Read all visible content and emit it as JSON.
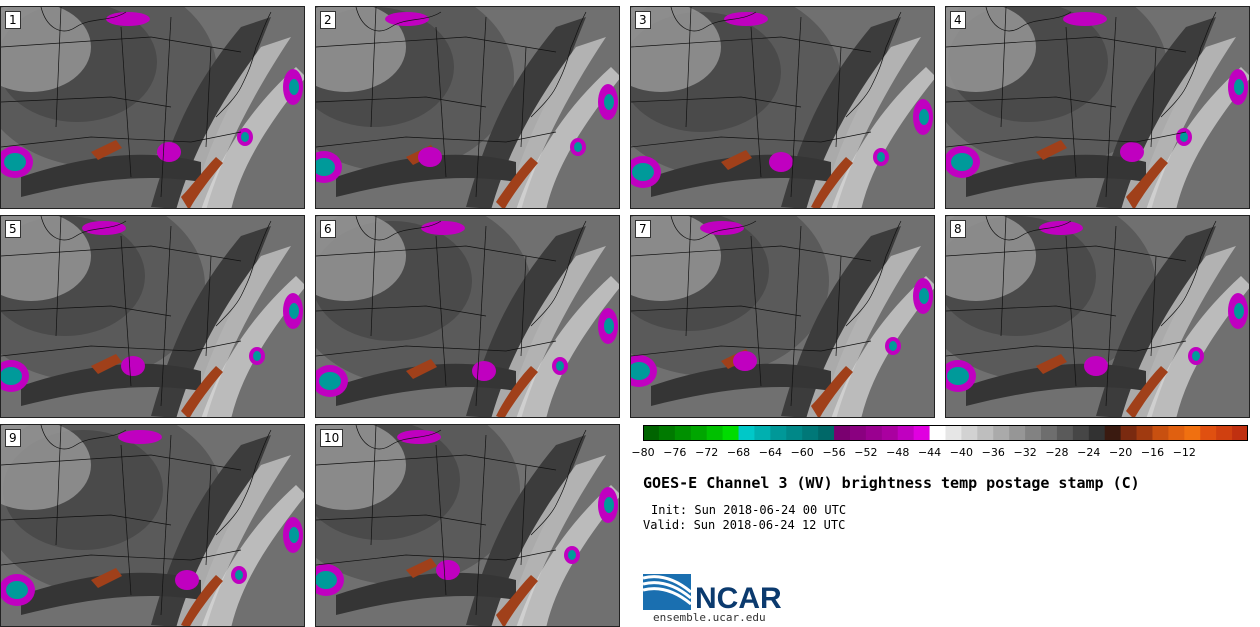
{
  "title": "GOES-E Channel 3 (WV) brightness temp postage stamp (C)",
  "init_label": "Init: Sun 2018-06-24 00 UTC",
  "valid_label": "Valid: Sun 2018-06-24 12 UTC",
  "logo_text": "NCAR",
  "logo_url": "ensemble.ucar.edu",
  "panels": [
    "1",
    "2",
    "3",
    "4",
    "5",
    "6",
    "7",
    "8",
    "9",
    "10"
  ],
  "colorbar": {
    "ticks": [
      "−80",
      "−76",
      "−72",
      "−68",
      "−64",
      "−60",
      "−56",
      "−52",
      "−48",
      "−44",
      "−40",
      "−36",
      "−32",
      "−28",
      "−24",
      "−20",
      "−16",
      "−12"
    ],
    "colors": [
      "#006400",
      "#007a00",
      "#009000",
      "#00a600",
      "#00c000",
      "#00dc00",
      "#00c8c8",
      "#00b0b0",
      "#009898",
      "#008888",
      "#007878",
      "#006868",
      "#7a0070",
      "#8a0080",
      "#9a0090",
      "#aa00a0",
      "#c000c0",
      "#e000e0",
      "#ffffff",
      "#e6e6e6",
      "#d2d2d2",
      "#bebebe",
      "#aaaaaa",
      "#969696",
      "#828282",
      "#6e6e6e",
      "#5a5a5a",
      "#464646",
      "#323232",
      "#3a1a10",
      "#7a2a10",
      "#a03a10",
      "#c85010",
      "#e06010",
      "#f07010",
      "#e05010",
      "#d04010",
      "#c03010"
    ]
  }
}
